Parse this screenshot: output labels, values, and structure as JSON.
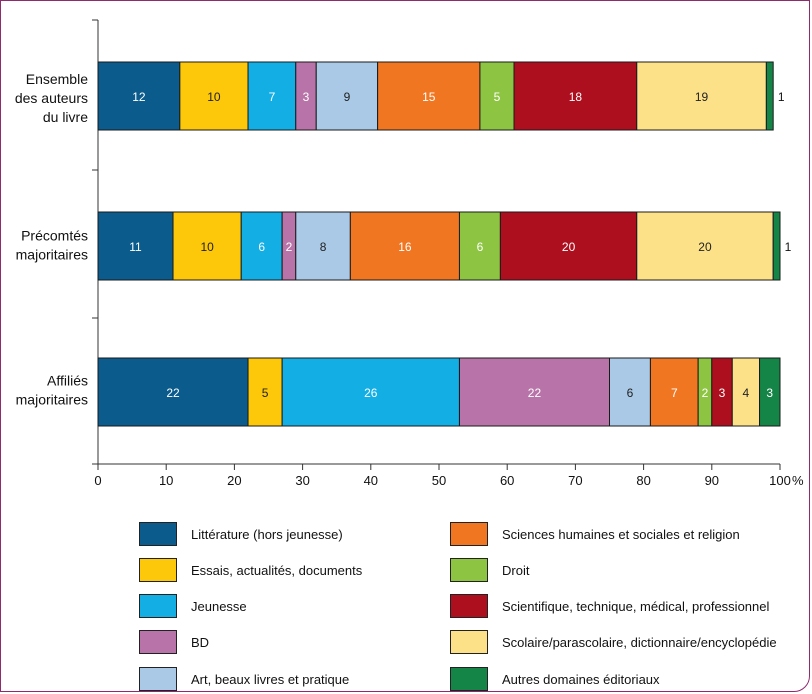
{
  "colors": {
    "Littérature (hors jeunesse)": "#0b5b8c",
    "Essais, actualités, documents": "#fdc70a",
    "Jeunesse": "#12aee4",
    "BD": "#b874a8",
    "Art, beaux livres et pratique": "#a9c9e6",
    "Sciences humaines et sociales et religion": "#f07622",
    "Droit": "#8dc543",
    "Scientifique, technique, médical, professionnel": "#ae0f1e",
    "Scolaire/parascolaire, dictionnaire/encyclopédie": "#fde189",
    "Autres domaines éditoriaux": "#148547"
  },
  "chart_data": {
    "type": "bar",
    "orientation": "horizontal",
    "stacked": true,
    "categories": [
      "Ensemble des auteurs du livre",
      "Précomtés majoritaires",
      "Affiliés majoritaires"
    ],
    "category_lines": [
      [
        "Ensemble",
        "des auteurs",
        "du livre"
      ],
      [
        "Précomtés",
        "majoritaires"
      ],
      [
        "Affiliés",
        "majoritaires"
      ]
    ],
    "series": [
      {
        "name": "Littérature (hors jeunesse)",
        "values": [
          12,
          11,
          22
        ]
      },
      {
        "name": "Essais, actualités, documents",
        "values": [
          10,
          10,
          5
        ]
      },
      {
        "name": "Jeunesse",
        "values": [
          7,
          6,
          26
        ]
      },
      {
        "name": "BD",
        "values": [
          3,
          2,
          22
        ]
      },
      {
        "name": "Art, beaux livres et pratique",
        "values": [
          9,
          8,
          6
        ]
      },
      {
        "name": "Sciences humaines et sociales et religion",
        "values": [
          15,
          16,
          7
        ]
      },
      {
        "name": "Droit",
        "values": [
          5,
          6,
          2
        ]
      },
      {
        "name": "Scientifique, technique, médical, professionnel",
        "values": [
          18,
          20,
          3
        ]
      },
      {
        "name": "Scolaire/parascolaire, dictionnaire/encyclopédie",
        "values": [
          19,
          20,
          4
        ]
      },
      {
        "name": "Autres domaines éditoriaux",
        "values": [
          1,
          1,
          3
        ]
      }
    ],
    "xlim": [
      0,
      100
    ],
    "xticks": [
      0,
      10,
      20,
      30,
      40,
      50,
      60,
      70,
      80,
      90,
      100
    ],
    "xunit": "%",
    "grid": false,
    "legend_position": "bottom"
  }
}
